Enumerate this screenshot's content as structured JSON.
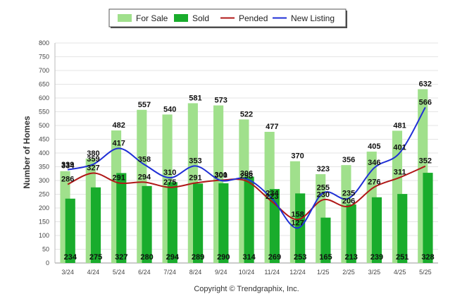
{
  "chart_data": {
    "type": "bar",
    "ylabel": "Number of Homes",
    "ylim": [
      0,
      800
    ],
    "yticks": [
      0,
      50,
      100,
      150,
      200,
      250,
      300,
      350,
      400,
      450,
      500,
      550,
      600,
      650,
      700,
      750,
      800
    ],
    "categories": [
      "3/24",
      "4/24",
      "5/24",
      "6/24",
      "7/24",
      "8/24",
      "9/24",
      "10/24",
      "11/24",
      "12/24",
      "1/25",
      "2/25",
      "3/25",
      "4/25",
      "5/25"
    ],
    "series": [
      {
        "name": "For Sale",
        "type": "bar",
        "color": "#a0e08c",
        "values": [
          334,
          380,
          482,
          557,
          540,
          581,
          573,
          522,
          477,
          370,
          323,
          356,
          405,
          481,
          632
        ]
      },
      {
        "name": "Sold",
        "type": "bar",
        "color": "#19ac2c",
        "values": [
          234,
          275,
          327,
          280,
          294,
          289,
          290,
          314,
          269,
          253,
          165,
          213,
          239,
          251,
          328
        ]
      },
      {
        "name": "Pended",
        "type": "line",
        "color": "#b01818",
        "values": [
          286,
          327,
          291,
          294,
          275,
          291,
          301,
          298,
          223,
          158,
          230,
          206,
          276,
          311,
          352
        ]
      },
      {
        "name": "New Listing",
        "type": "line",
        "color": "#1f2fd6",
        "values": [
          339,
          359,
          417,
          358,
          310,
          353,
          300,
          306,
          234,
          127,
          255,
          235,
          346,
          401,
          566
        ]
      }
    ],
    "grid": true,
    "legend": "top"
  },
  "footer": {
    "copyright": "Copyright © Trendgraphix, Inc."
  }
}
